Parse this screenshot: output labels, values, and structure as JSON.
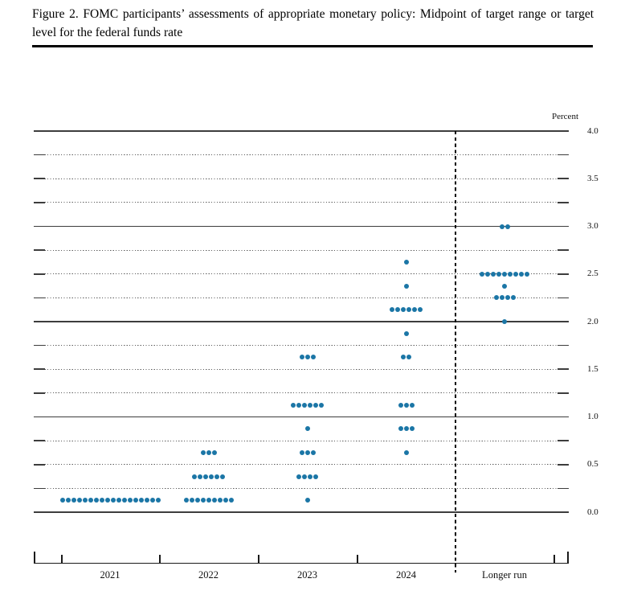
{
  "title": {
    "text": "Figure 2.  FOMC participants’ assessments of appropriate monetary policy:  Midpoint of target range or target level for the federal funds rate"
  },
  "chart_data": {
    "type": "scatter",
    "subtype": "fomc-dot-plot",
    "title": "Figure 2. FOMC participants’ assessments of appropriate monetary policy: Midpoint of target range or target level for the federal funds rate",
    "ylabel": "Percent",
    "ylim": [
      0.0,
      4.0
    ],
    "y_gridline_step": 0.25,
    "y_label_step": 0.5,
    "y_tick_labels": [
      "4.0",
      "3.5",
      "3.0",
      "2.5",
      "2.0",
      "1.5",
      "1.0",
      "0.5",
      "0.0"
    ],
    "grid": "dotted quarter-point lines with solid lines at whole percents",
    "legend_position": "none",
    "categories": [
      "2021",
      "2022",
      "2023",
      "2024",
      "Longer run"
    ],
    "columns": [
      {
        "label": "2021",
        "dots": [
          {
            "value": 0.125,
            "count": 18
          }
        ]
      },
      {
        "label": "2022",
        "dots": [
          {
            "value": 0.625,
            "count": 3
          },
          {
            "value": 0.375,
            "count": 6
          },
          {
            "value": 0.125,
            "count": 9
          }
        ]
      },
      {
        "label": "2023",
        "dots": [
          {
            "value": 1.625,
            "count": 3
          },
          {
            "value": 1.125,
            "count": 6
          },
          {
            "value": 0.875,
            "count": 1
          },
          {
            "value": 0.625,
            "count": 3
          },
          {
            "value": 0.375,
            "count": 4
          },
          {
            "value": 0.125,
            "count": 1
          }
        ]
      },
      {
        "label": "2024",
        "dots": [
          {
            "value": 2.625,
            "count": 1
          },
          {
            "value": 2.375,
            "count": 1
          },
          {
            "value": 2.125,
            "count": 6
          },
          {
            "value": 1.875,
            "count": 1
          },
          {
            "value": 1.625,
            "count": 2
          },
          {
            "value": 1.125,
            "count": 3
          },
          {
            "value": 0.875,
            "count": 3
          },
          {
            "value": 0.625,
            "count": 1
          }
        ]
      },
      {
        "label": "Longer run",
        "dots": [
          {
            "value": 3.0,
            "count": 2
          },
          {
            "value": 2.5,
            "count": 9
          },
          {
            "value": 2.375,
            "count": 1
          },
          {
            "value": 2.25,
            "count": 4
          },
          {
            "value": 2.0,
            "count": 1
          }
        ]
      }
    ],
    "colors": {
      "dot": "#1b76a6",
      "solid_grid": "#3d3d3d",
      "dotted_grid": "#5a5a5a",
      "axis": "#1a1a1a"
    }
  }
}
